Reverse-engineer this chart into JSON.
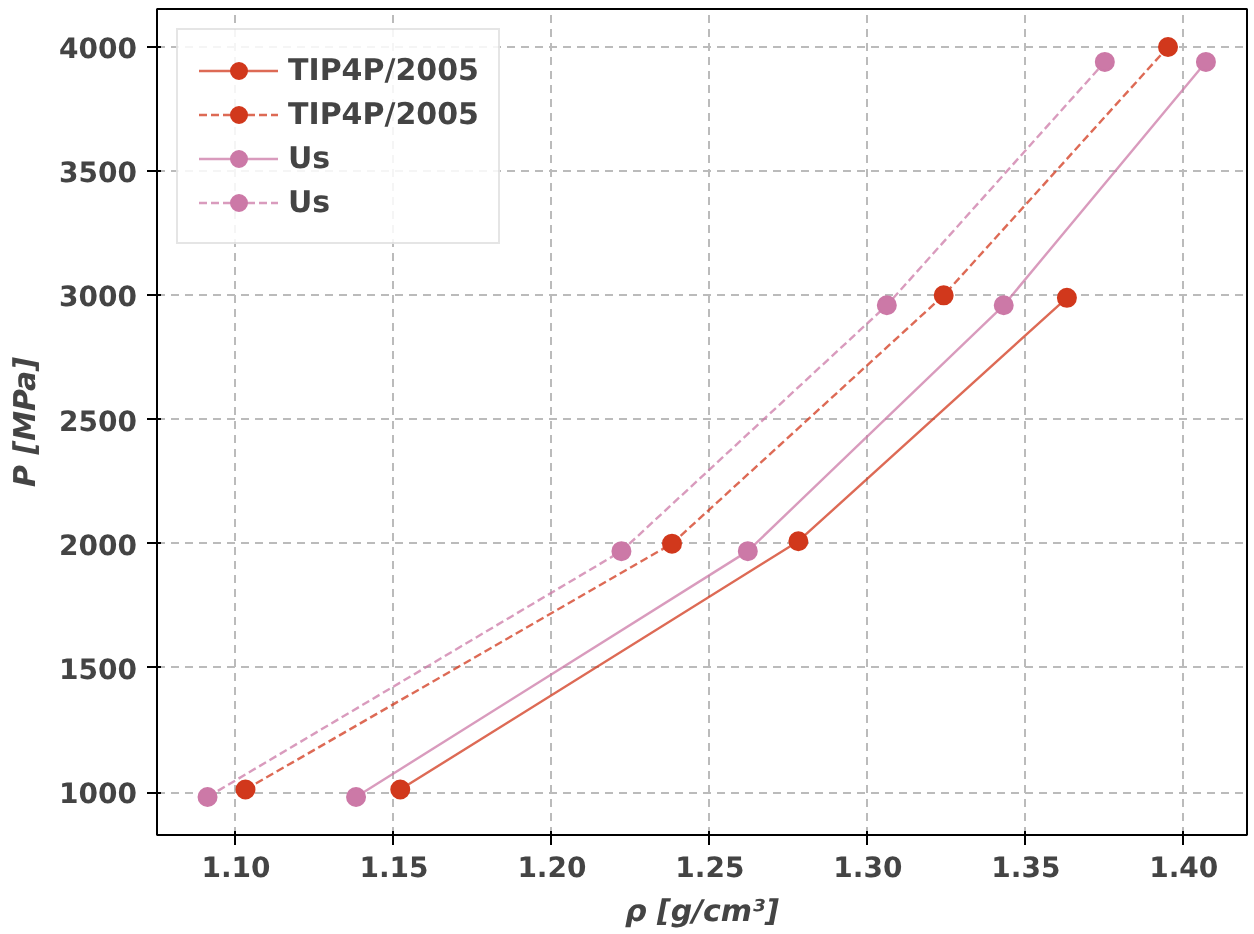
{
  "chart_data": {
    "type": "line",
    "xlabel": "ρ [g/cm³]",
    "ylabel": "P [MPa]",
    "xlim": [
      1.075,
      1.42
    ],
    "ylim": [
      827,
      4153
    ],
    "xticks": [
      {
        "value": 1.1,
        "label": "1.10"
      },
      1.15,
      {
        "value": 1.2,
        "label": "1.20"
      },
      1.25,
      {
        "value": 1.3,
        "label": "1.30"
      },
      1.35,
      {
        "value": 1.4,
        "label": "1.40"
      }
    ],
    "yticks": [
      1000,
      1500,
      2000,
      2500,
      3000,
      3500,
      4000
    ],
    "grid": true,
    "legend": "top left",
    "marker": "circle",
    "series": [
      {
        "name": "TIP4P/2005",
        "color": "#d1381c",
        "line_style": "solid",
        "x": [
          1.152,
          1.278,
          1.363
        ],
        "values": [
          1010,
          2010,
          2990
        ]
      },
      {
        "name": "TIP4P/2005",
        "color": "#d1381c",
        "line_style": "dashed",
        "x": [
          1.103,
          1.238,
          1.324,
          1.395
        ],
        "values": [
          1010,
          2000,
          3000,
          4000
        ]
      },
      {
        "name": "Us",
        "color": "#cc79a7",
        "line_style": "solid",
        "x": [
          1.138,
          1.262,
          1.343,
          1.407
        ],
        "values": [
          980,
          1970,
          2960,
          3940
        ]
      },
      {
        "name": "Us",
        "color": "#cc79a7",
        "line_style": "dashed",
        "x": [
          1.091,
          1.222,
          1.306,
          1.375
        ],
        "values": [
          980,
          1970,
          2960,
          3940
        ]
      }
    ]
  }
}
